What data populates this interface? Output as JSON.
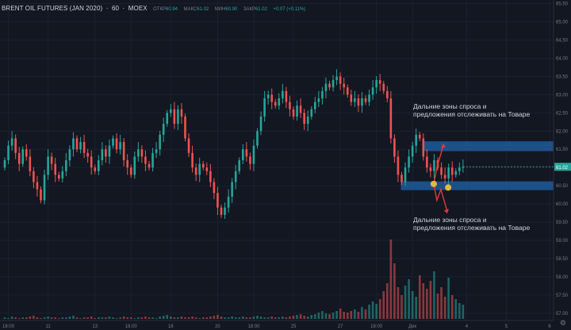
{
  "header": {
    "symbol": "BRENT OIL FUTURES (JAN 2020)",
    "interval": "60",
    "exchange": "MOEX",
    "ohlc": [
      {
        "label": "ОТКР",
        "value": "60.94"
      },
      {
        "label": "МАКС",
        "value": "61.02"
      },
      {
        "label": "МИН",
        "value": "60.90"
      },
      {
        "label": "ЗАКР",
        "value": "61.02"
      }
    ],
    "change": "+0.07 (+0.11%)",
    "separator": "·"
  },
  "annotations": {
    "top_line1": "Дальние зоны спроса и",
    "top_line2": "предложения отслеживать на Товаре",
    "bottom_line1": "Дальние зоны спроса и",
    "bottom_line2": "предложения отслеживать на Товаре"
  },
  "gear_icon": "gear-icon",
  "colors": {
    "background": "#131722",
    "up": "#26a69a",
    "down": "#ef5350",
    "zone": "#1e5a9a",
    "last_price": "#26a69a",
    "arrow": "#e53935",
    "marker": "#e5b73b"
  },
  "chart_data": {
    "type": "candlestick",
    "title": "BRENT OIL FUTURES (JAN 2020) · 60 · MOEX",
    "ylim": [
      56.8,
      65.6
    ],
    "y_ticks": [
      "65.50",
      "65.00",
      "64.50",
      "64.00",
      "63.50",
      "63.00",
      "62.50",
      "62.00",
      "61.50",
      "61.00",
      "60.50",
      "60.00",
      "59.50",
      "59.00",
      "58.50",
      "58.00",
      "57.50",
      "57.00"
    ],
    "last_price": "61.02",
    "x_ticks": [
      {
        "label": "18:00",
        "i": 1
      },
      {
        "label": "11",
        "i": 12
      },
      {
        "label": "13",
        "i": 25
      },
      {
        "label": "18:00",
        "i": 35
      },
      {
        "label": "18",
        "i": 46
      },
      {
        "label": "20",
        "i": 59
      },
      {
        "label": "18:00",
        "i": 69
      },
      {
        "label": "25",
        "i": 80
      },
      {
        "label": "27",
        "i": 93
      },
      {
        "label": "18:00",
        "i": 103
      },
      {
        "label": "Дек",
        "i": 113
      },
      {
        "label": "4",
        "i": 128
      },
      {
        "label": "5",
        "i": 139
      },
      {
        "label": "6",
        "i": 151
      }
    ],
    "zones": [
      {
        "from": 61.45,
        "to": 61.72,
        "start_i": 116
      },
      {
        "from": 60.38,
        "to": 60.62,
        "start_i": 110
      }
    ],
    "closes": [
      61.2,
      61.6,
      61.8,
      61.4,
      61.1,
      61.5,
      61.3,
      60.9,
      60.6,
      60.4,
      60.1,
      60.8,
      61.3,
      61.1,
      60.8,
      60.7,
      60.9,
      61.2,
      61.5,
      61.8,
      61.5,
      61.7,
      61.4,
      61.3,
      61.0,
      60.9,
      61.2,
      61.5,
      61.3,
      61.6,
      61.8,
      61.5,
      61.7,
      61.2,
      61.0,
      60.8,
      61.3,
      61.5,
      61.3,
      61.1,
      61.0,
      61.4,
      61.5,
      61.9,
      62.2,
      62.5,
      62.6,
      62.2,
      62.6,
      62.4,
      61.8,
      61.4,
      61.0,
      60.8,
      61.1,
      61.0,
      60.9,
      60.6,
      60.3,
      59.9,
      59.7,
      59.9,
      60.2,
      60.6,
      60.9,
      61.2,
      61.5,
      61.3,
      61.1,
      61.6,
      62.0,
      62.4,
      62.9,
      63.0,
      62.8,
      62.7,
      62.9,
      63.1,
      62.8,
      62.6,
      62.4,
      62.7,
      62.5,
      62.2,
      62.4,
      62.6,
      62.8,
      62.9,
      63.1,
      63.3,
      63.2,
      63.4,
      63.5,
      63.3,
      63.2,
      63.0,
      62.8,
      62.9,
      62.7,
      62.9,
      62.8,
      63.0,
      63.2,
      63.4,
      63.3,
      63.1,
      62.9,
      61.8,
      61.3,
      60.8,
      60.6,
      61.0,
      61.3,
      61.6,
      61.9,
      61.8,
      61.3,
      61.0,
      60.9,
      61.2,
      61.0,
      60.8,
      60.7,
      61.0,
      60.8,
      60.9,
      61.0,
      61.02
    ],
    "volumes": [
      0.02,
      0.01,
      0.03,
      0.02,
      0.01,
      0.02,
      0.02,
      0.03,
      0.04,
      0.02,
      0.01,
      0.02,
      0.03,
      0.02,
      0.02,
      0.01,
      0.02,
      0.02,
      0.03,
      0.04,
      0.02,
      0.01,
      0.02,
      0.02,
      0.03,
      0.01,
      0.02,
      0.02,
      0.02,
      0.03,
      0.02,
      0.01,
      0.02,
      0.03,
      0.02,
      0.02,
      0.01,
      0.02,
      0.02,
      0.03,
      0.02,
      0.02,
      0.01,
      0.03,
      0.04,
      0.05,
      0.03,
      0.02,
      0.02,
      0.03,
      0.02,
      0.02,
      0.03,
      0.02,
      0.01,
      0.02,
      0.02,
      0.03,
      0.04,
      0.05,
      0.03,
      0.02,
      0.02,
      0.03,
      0.02,
      0.02,
      0.03,
      0.02,
      0.02,
      0.03,
      0.04,
      0.03,
      0.02,
      0.02,
      0.03,
      0.02,
      0.02,
      0.03,
      0.02,
      0.03,
      0.04,
      0.05,
      0.06,
      0.04,
      0.03,
      0.05,
      0.06,
      0.08,
      0.1,
      0.07,
      0.06,
      0.08,
      0.1,
      0.13,
      0.09,
      0.08,
      0.1,
      0.12,
      0.09,
      0.15,
      0.12,
      0.18,
      0.22,
      0.19,
      0.25,
      0.35,
      0.45,
      1.0,
      0.7,
      0.4,
      0.3,
      0.42,
      0.5,
      0.35,
      0.28,
      0.55,
      0.45,
      0.38,
      0.48,
      0.6,
      0.32,
      0.4,
      0.28,
      0.52,
      0.3,
      0.25,
      0.2,
      0.18
    ]
  }
}
